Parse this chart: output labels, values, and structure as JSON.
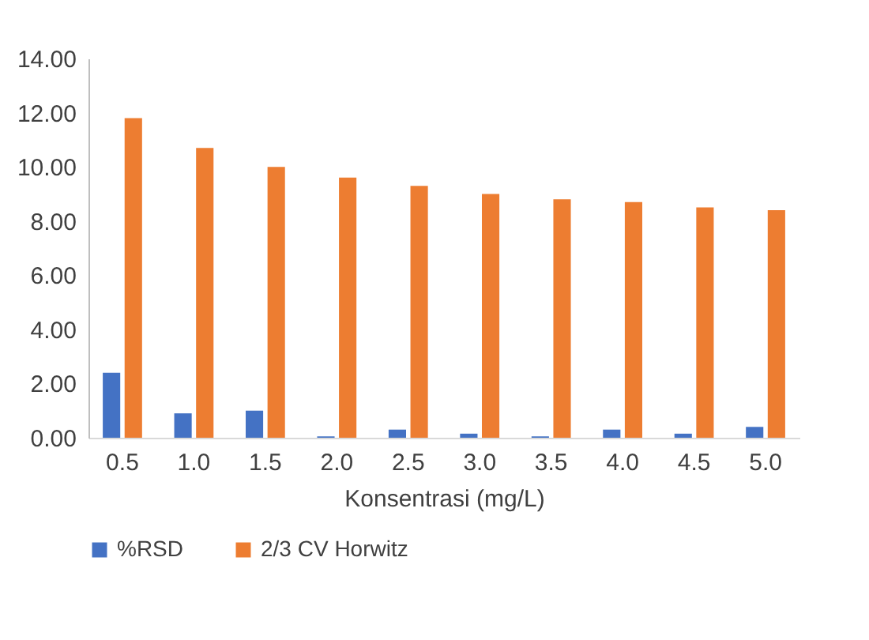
{
  "chart_data": {
    "type": "bar",
    "xlabel": "Konsentrasi (mg/L)",
    "categories": [
      "0.5",
      "1.0",
      "1.5",
      "2.0",
      "2.5",
      "3.0",
      "3.5",
      "4.0",
      "4.5",
      "5.0"
    ],
    "series": [
      {
        "name": "%RSD",
        "color": "#4472c4",
        "values": [
          2.4,
          0.9,
          1.0,
          0.05,
          0.3,
          0.15,
          0.05,
          0.3,
          0.15,
          0.4
        ]
      },
      {
        "name": "2/3 CV Horwitz",
        "color": "#ed7d31",
        "values": [
          11.8,
          10.7,
          10.0,
          9.6,
          9.3,
          9.0,
          8.8,
          8.7,
          8.5,
          8.4
        ]
      }
    ],
    "ylim": [
      0,
      14
    ],
    "yticks": [
      {
        "value": 0,
        "label": "0.00"
      },
      {
        "value": 2,
        "label": "2.00"
      },
      {
        "value": 4,
        "label": "4.00"
      },
      {
        "value": 6,
        "label": "6.00"
      },
      {
        "value": 8,
        "label": "8.00"
      },
      {
        "value": 10,
        "label": "10.00"
      },
      {
        "value": 12,
        "label": "12.00"
      },
      {
        "value": 14,
        "label": "14.00"
      }
    ],
    "grid": false,
    "legend": "bottom"
  }
}
